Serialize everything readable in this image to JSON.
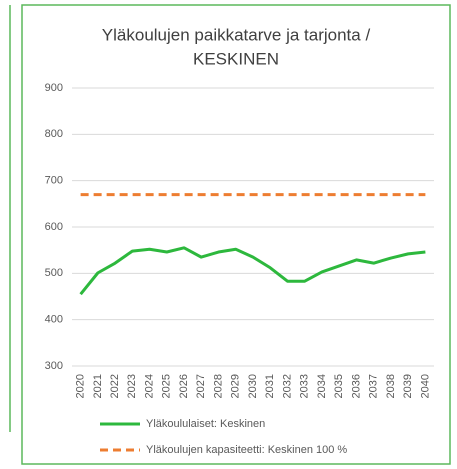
{
  "chart_data": {
    "type": "line",
    "title": [
      "Yläkoulujen paikkatarve ja tarjonta /",
      "KESKINEN"
    ],
    "categories": [
      "2020",
      "2021",
      "2022",
      "2023",
      "2024",
      "2025",
      "2026",
      "2027",
      "2028",
      "2029",
      "2030",
      "2031",
      "2032",
      "2033",
      "2034",
      "2035",
      "2036",
      "2037",
      "2038",
      "2039",
      "2040"
    ],
    "series": [
      {
        "name": "Yläkoululaiset: Keskinen",
        "color": "#2db83d",
        "linestyle": "solid",
        "values": [
          455,
          501,
          522,
          548,
          552,
          546,
          555,
          535,
          546,
          552,
          535,
          512,
          483,
          483,
          503,
          516,
          529,
          522,
          533,
          542,
          546
        ]
      },
      {
        "name": "Yläkoulujen  kapasiteetti: Keskinen 100 %",
        "color": "#ed7d31",
        "linestyle": "dashed",
        "values": [
          670,
          670,
          670,
          670,
          670,
          670,
          670,
          670,
          670,
          670,
          670,
          670,
          670,
          670,
          670,
          670,
          670,
          670,
          670,
          670,
          670
        ]
      }
    ],
    "ylim": [
      300,
      900
    ],
    "yticks": [
      300,
      400,
      500,
      600,
      700,
      800,
      900
    ],
    "grid": true
  }
}
